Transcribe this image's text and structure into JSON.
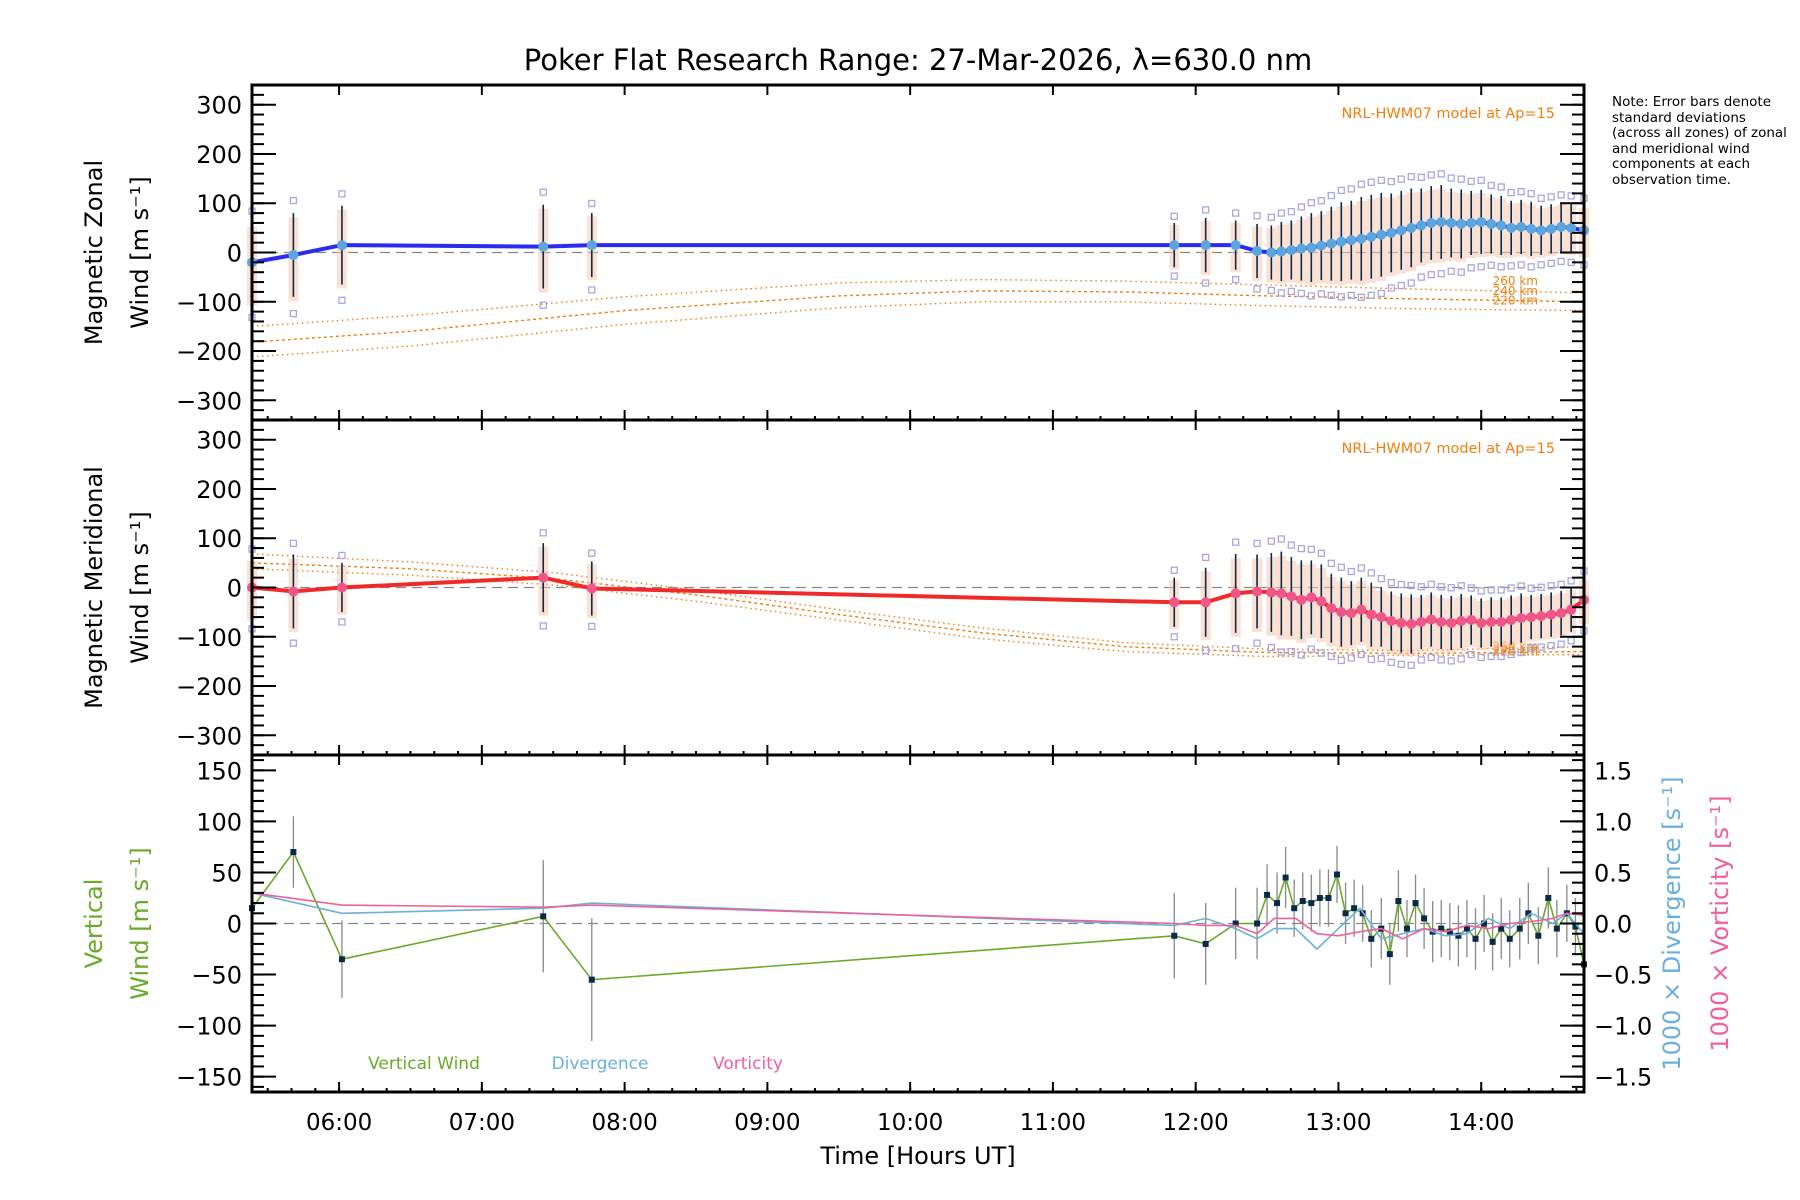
{
  "title": "Poker Flat Research Range: 27-Mar-2026, λ=630.0 nm",
  "note": "Note: Error bars denote standard deviations (across all zones) of zonal and meridional wind components at each observation time.",
  "colors": {
    "zonal": "#2a2af0",
    "zonal_marker": "#5aa7e0",
    "meridional": "#f02a2a",
    "meridional_marker": "#f0568a",
    "model": "#f07f10",
    "vertical": "#6aaa2a",
    "divergence": "#6ab0dc",
    "vorticity": "#f0609a",
    "errorbar": "#0a2a4a",
    "zone_box": "#a8a8e0",
    "zero_line": "#888888"
  },
  "chart_data": [
    {
      "type": "line",
      "panel": "zonal",
      "ylabel_line1": "Magnetic Zonal",
      "ylabel_line2": "Wind [m s⁻¹]",
      "ylim": [
        -340,
        340
      ],
      "yticks": [
        -300,
        -200,
        -100,
        0,
        100,
        200,
        300
      ],
      "xlim_hours": [
        5.39,
        14.72
      ],
      "model_label": "NRL-HWM07 model at Ap=15",
      "model_series": [
        {
          "name": "260 km",
          "x": [
            5.39,
            6.5,
            8,
            9.5,
            10.5,
            11.5,
            12.5,
            13.5,
            14.72
          ],
          "y": [
            -150,
            -128,
            -90,
            -62,
            -55,
            -58,
            -66,
            -74,
            -82
          ]
        },
        {
          "name": "240 km",
          "x": [
            5.39,
            6.5,
            8,
            9.5,
            10.5,
            11.5,
            12.5,
            13.5,
            14.72
          ],
          "y": [
            -182,
            -160,
            -118,
            -88,
            -78,
            -80,
            -88,
            -94,
            -100
          ]
        },
        {
          "name": "220 km",
          "x": [
            5.39,
            6.5,
            8,
            9.5,
            10.5,
            11.5,
            12.5,
            13.5,
            14.72
          ],
          "y": [
            -212,
            -190,
            -146,
            -112,
            -100,
            -100,
            -108,
            -114,
            -118
          ]
        }
      ],
      "series": [
        {
          "name": "Zonal wind",
          "x": [
            5.39,
            5.68,
            6.02,
            7.43,
            7.77,
            11.85,
            12.07,
            12.28,
            12.43,
            12.53,
            12.6,
            12.67,
            12.74,
            12.81,
            12.88,
            12.95,
            13.02,
            13.09,
            13.16,
            13.23,
            13.3,
            13.37,
            13.44,
            13.51,
            13.58,
            13.65,
            13.72,
            13.79,
            13.86,
            13.93,
            14.0,
            14.07,
            14.14,
            14.21,
            14.28,
            14.35,
            14.42,
            14.49,
            14.56,
            14.63,
            14.72
          ],
          "y": [
            -20,
            -5,
            15,
            12,
            15,
            15,
            15,
            15,
            3,
            0,
            2,
            5,
            8,
            10,
            14,
            18,
            22,
            25,
            28,
            32,
            36,
            40,
            45,
            50,
            55,
            60,
            62,
            60,
            58,
            60,
            62,
            58,
            55,
            50,
            52,
            48,
            45,
            48,
            52,
            50,
            45
          ],
          "err": [
            80,
            85,
            80,
            85,
            65,
            45,
            55,
            50,
            55,
            55,
            60,
            60,
            65,
            70,
            70,
            75,
            80,
            80,
            85,
            85,
            85,
            80,
            80,
            80,
            75,
            75,
            75,
            70,
            70,
            65,
            65,
            60,
            60,
            55,
            55,
            55,
            50,
            50,
            50,
            50,
            50
          ]
        }
      ]
    },
    {
      "type": "line",
      "panel": "meridional",
      "ylabel_line1": "Magnetic Meridional",
      "ylabel_line2": "Wind [m s⁻¹]",
      "ylim": [
        -340,
        340
      ],
      "yticks": [
        -300,
        -200,
        -100,
        0,
        100,
        200,
        300
      ],
      "xlim_hours": [
        5.39,
        14.72
      ],
      "model_label": "NRL-HWM07 model at Ap=15",
      "model_series": [
        {
          "name": "260 km",
          "x": [
            5.39,
            6.5,
            7.5,
            8.5,
            9.5,
            10.5,
            11.5,
            12.5,
            13.5,
            14.72
          ],
          "y": [
            68,
            52,
            30,
            -5,
            -45,
            -82,
            -112,
            -125,
            -128,
            -120
          ]
        },
        {
          "name": "240 km",
          "x": [
            5.39,
            6.5,
            7.5,
            8.5,
            9.5,
            10.5,
            11.5,
            12.5,
            13.5,
            14.72
          ],
          "y": [
            50,
            38,
            18,
            -15,
            -55,
            -92,
            -120,
            -132,
            -134,
            -130
          ]
        },
        {
          "name": "220 km",
          "x": [
            5.39,
            6.5,
            7.5,
            8.5,
            9.5,
            10.5,
            11.5,
            12.5,
            13.5,
            14.72
          ],
          "y": [
            38,
            25,
            5,
            -28,
            -66,
            -104,
            -130,
            -140,
            -138,
            -136
          ]
        }
      ],
      "series": [
        {
          "name": "Meridional wind",
          "x": [
            5.39,
            5.68,
            6.02,
            7.43,
            7.77,
            11.85,
            12.07,
            12.28,
            12.43,
            12.53,
            12.6,
            12.67,
            12.74,
            12.81,
            12.88,
            12.95,
            13.02,
            13.09,
            13.16,
            13.23,
            13.3,
            13.37,
            13.44,
            13.51,
            13.58,
            13.65,
            13.72,
            13.79,
            13.86,
            13.93,
            14.0,
            14.07,
            14.14,
            14.21,
            14.28,
            14.35,
            14.42,
            14.49,
            14.56,
            14.63,
            14.72
          ],
          "y": [
            0,
            -8,
            0,
            20,
            -2,
            -30,
            -30,
            -12,
            -8,
            -10,
            -12,
            -18,
            -25,
            -20,
            -28,
            -42,
            -50,
            -52,
            -45,
            -55,
            -60,
            -68,
            -72,
            -74,
            -70,
            -65,
            -70,
            -72,
            -68,
            -66,
            -72,
            -70,
            -70,
            -66,
            -62,
            -60,
            -58,
            -55,
            -52,
            -45,
            -25
          ],
          "err": [
            60,
            75,
            50,
            70,
            55,
            50,
            70,
            80,
            75,
            80,
            85,
            80,
            80,
            75,
            75,
            70,
            70,
            65,
            65,
            65,
            60,
            60,
            60,
            60,
            55,
            55,
            55,
            55,
            55,
            50,
            50,
            50,
            50,
            50,
            50,
            45,
            45,
            45,
            45,
            45,
            45
          ]
        }
      ]
    },
    {
      "type": "line",
      "panel": "vertical",
      "ylabel_line1": "Vertical",
      "ylabel_line2": "Wind [m s⁻¹]",
      "y2label_div": "1000 × Divergence [s⁻¹]",
      "y2label_vor": "1000 × Vorticity [s⁻¹]",
      "ylim": [
        -165,
        165
      ],
      "yticks": [
        -150,
        -100,
        -50,
        0,
        50,
        100,
        150
      ],
      "y2lim": [
        -1.65,
        1.65
      ],
      "y2ticks": [
        "-1.5",
        "-1.0",
        "-0.5",
        "0.0",
        "0.5",
        "1.0",
        "1.5"
      ],
      "xlim_hours": [
        5.39,
        14.72
      ],
      "xticks": [
        "06:00",
        "07:00",
        "08:00",
        "09:00",
        "10:00",
        "11:00",
        "12:00",
        "13:00",
        "14:00"
      ],
      "xtick_hours": [
        6,
        7,
        8,
        9,
        10,
        11,
        12,
        13,
        14
      ],
      "xlabel": "Time [Hours UT]",
      "legend": [
        "Vertical Wind",
        "Divergence",
        "Vorticity"
      ],
      "series": [
        {
          "name": "Vertical Wind",
          "x": [
            5.39,
            5.68,
            6.02,
            7.43,
            7.77,
            11.85,
            12.07,
            12.28,
            12.43,
            12.5,
            12.57,
            12.63,
            12.69,
            12.75,
            12.81,
            12.87,
            12.93,
            12.99,
            13.05,
            13.11,
            13.17,
            13.23,
            13.3,
            13.36,
            13.42,
            13.48,
            13.54,
            13.6,
            13.66,
            13.72,
            13.78,
            13.84,
            13.9,
            13.96,
            14.02,
            14.08,
            14.14,
            14.2,
            14.27,
            14.33,
            14.4,
            14.47,
            14.53,
            14.6,
            14.66,
            14.72
          ],
          "y": [
            15,
            70,
            -35,
            7,
            -55,
            -12,
            -20,
            0,
            0,
            28,
            20,
            45,
            15,
            22,
            20,
            25,
            25,
            48,
            10,
            15,
            10,
            -15,
            -5,
            -30,
            22,
            -5,
            20,
            5,
            -8,
            -5,
            -8,
            -12,
            -5,
            -15,
            0,
            -18,
            -5,
            -15,
            -5,
            10,
            -12,
            25,
            -5,
            10,
            -3,
            -40
          ],
          "err": [
            10,
            35,
            38,
            55,
            60,
            42,
            40,
            35,
            35,
            30,
            30,
            30,
            28,
            28,
            28,
            28,
            28,
            28,
            30,
            28,
            28,
            28,
            30,
            30,
            30,
            28,
            28,
            30,
            30,
            28,
            28,
            30,
            28,
            30,
            28,
            28,
            30,
            28,
            30,
            30,
            28,
            30,
            28,
            28,
            28,
            25
          ]
        },
        {
          "name": "Divergence",
          "x": [
            5.39,
            6.02,
            7.43,
            7.77,
            11.85,
            12.07,
            12.28,
            12.43,
            12.55,
            12.7,
            12.85,
            13.0,
            13.15,
            13.3,
            13.45,
            13.6,
            13.75,
            13.9,
            14.05,
            14.2,
            14.35,
            14.5,
            14.6,
            14.72
          ],
          "y": [
            0.3,
            0.1,
            0.15,
            0.2,
            -0.02,
            0.05,
            -0.05,
            -0.15,
            -0.05,
            -0.05,
            -0.25,
            -0.05,
            0.15,
            -0.15,
            -0.1,
            -0.05,
            -0.12,
            -0.1,
            0.05,
            -0.05,
            0.1,
            0.0,
            0.1,
            -0.1
          ]
        },
        {
          "name": "Vorticity",
          "x": [
            5.39,
            6.02,
            7.43,
            7.77,
            11.85,
            12.07,
            12.28,
            12.43,
            12.55,
            12.7,
            12.85,
            13.0,
            13.15,
            13.3,
            13.45,
            13.6,
            13.75,
            13.9,
            14.05,
            14.2,
            14.35,
            14.5,
            14.6,
            14.72
          ],
          "y": [
            0.3,
            0.18,
            0.16,
            0.18,
            0.0,
            -0.02,
            -0.02,
            -0.1,
            0.05,
            0.05,
            -0.1,
            -0.12,
            -0.08,
            -0.05,
            -0.15,
            -0.05,
            -0.08,
            -0.02,
            -0.05,
            0.0,
            0.02,
            0.05,
            0.1,
            0.08
          ]
        }
      ]
    }
  ]
}
